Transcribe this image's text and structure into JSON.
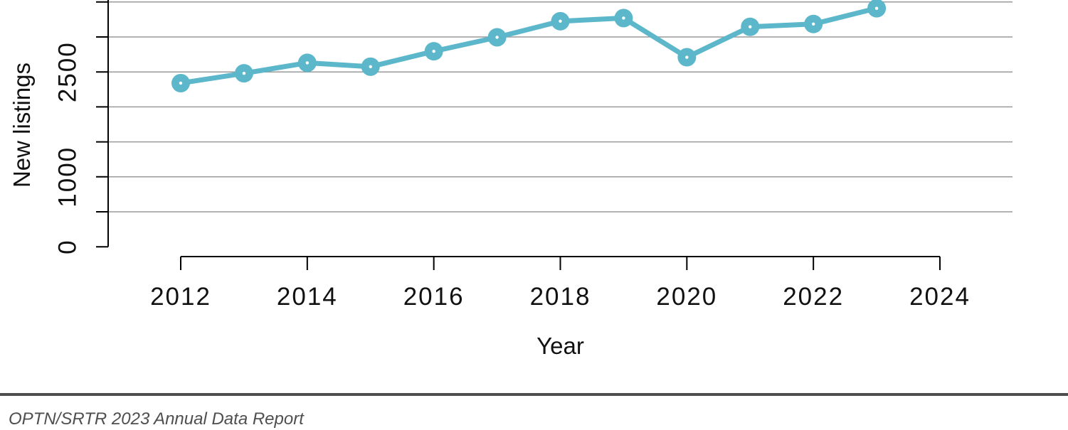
{
  "chart_data": {
    "type": "line",
    "title": "",
    "xlabel": "Year",
    "ylabel": "New listings",
    "x": [
      2012,
      2013,
      2014,
      2015,
      2016,
      2017,
      2018,
      2019,
      2020,
      2021,
      2022,
      2023
    ],
    "series": [
      {
        "name": "New listings",
        "values": [
          2340,
          2480,
          2630,
          2575,
          2795,
          2995,
          3225,
          3270,
          2710,
          3145,
          3185,
          3410
        ]
      }
    ],
    "x_ticks": [
      2012,
      2014,
      2016,
      2018,
      2020,
      2022,
      2024
    ],
    "y_ticks": [
      0,
      500,
      1000,
      1500,
      2000,
      2500,
      3000,
      3500
    ],
    "y_tick_labels": {
      "0": "0",
      "1000": "1000",
      "2500": "2500"
    },
    "xlim": [
      2012,
      2024
    ],
    "ylim": [
      0,
      3500
    ],
    "grid": "horizontal gridlines at each 500 step except 0; chart cropped near 3500 at top",
    "legend": "none",
    "marker": "filled circle with tiny white center dot",
    "line_color": "#5cb7cb",
    "grid_color": "#9a9a9a",
    "axis_color": "#000000",
    "text_color": "#111111"
  },
  "footer": {
    "text": "OPTN/SRTR 2023 Annual Data Report",
    "rule_color": "#4d4d4d",
    "text_color": "#4f4f4f"
  }
}
